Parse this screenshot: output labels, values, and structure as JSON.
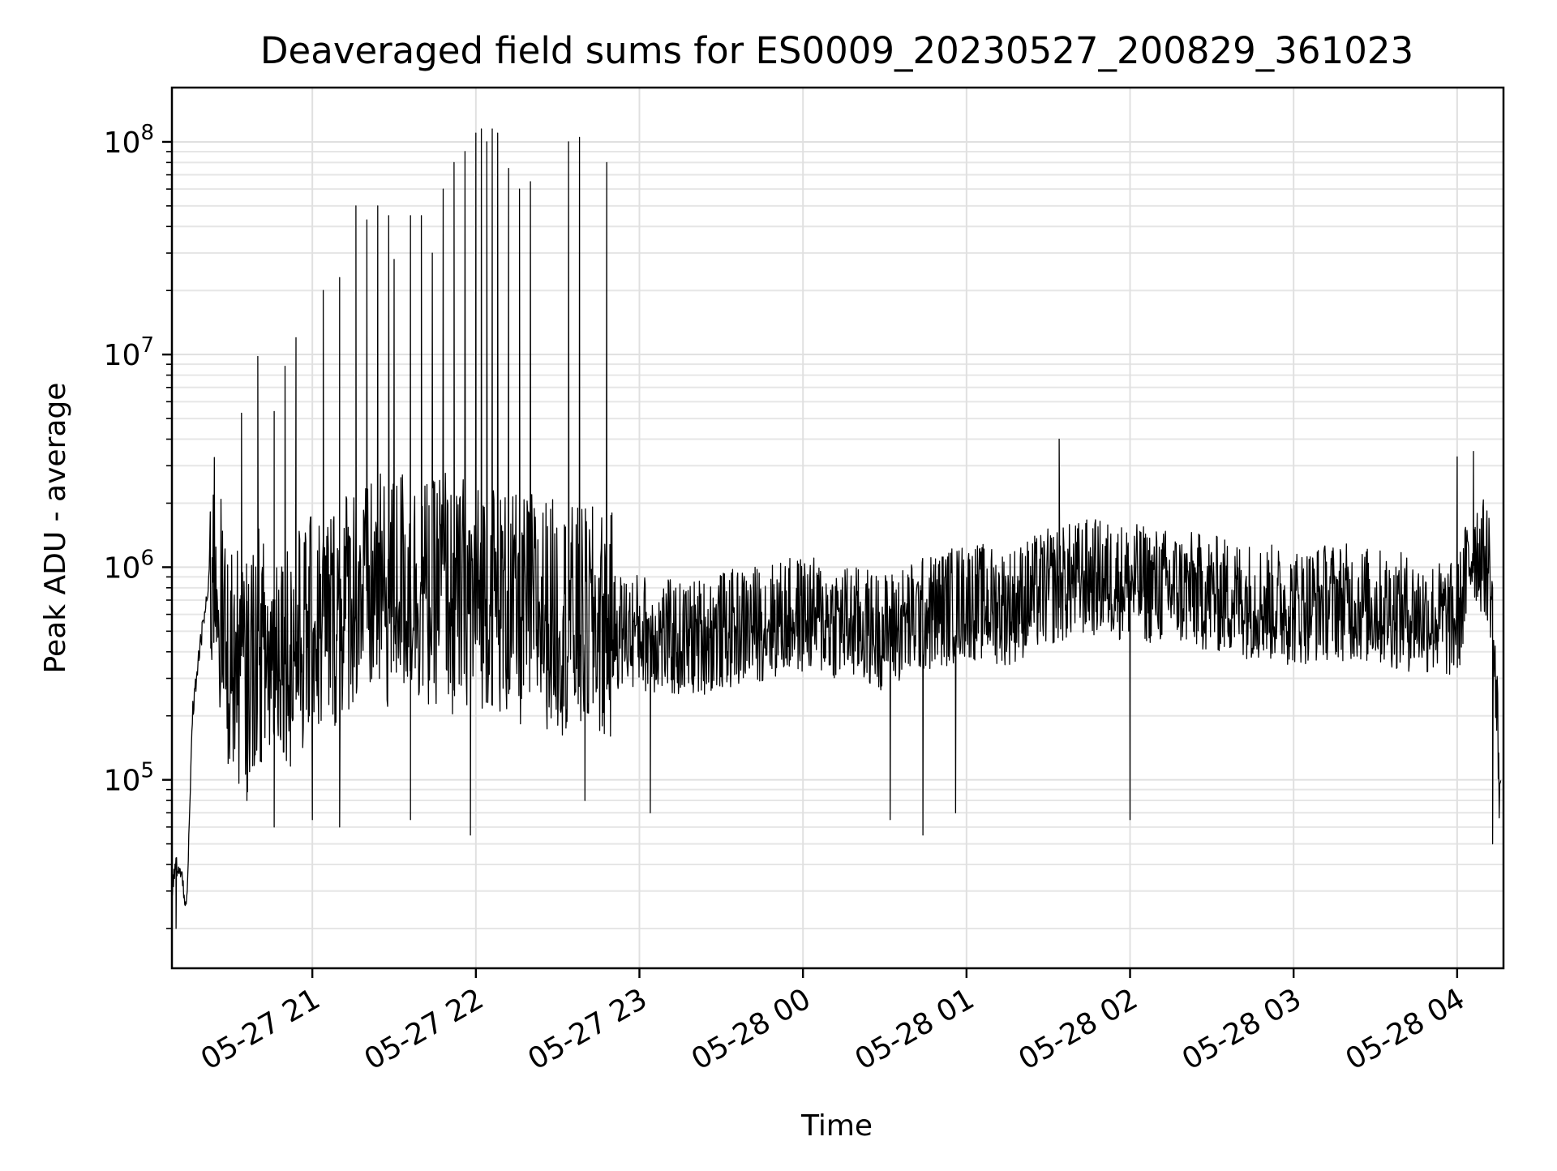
{
  "chart_data": {
    "type": "line",
    "title": "Deaveraged field sums for ES0009_20230527_200829_361023",
    "xlabel": "Time",
    "ylabel": "Peak ADU - average",
    "yscale": "log",
    "ylim": [
      13000,
      180000000
    ],
    "xlim": [
      "2023-05-27 20:08:29",
      "2023-05-28 04:17:00"
    ],
    "grid": true,
    "y_ticks": [
      {
        "value": 100000,
        "base": "10",
        "exp": "5"
      },
      {
        "value": 1000000,
        "base": "10",
        "exp": "6"
      },
      {
        "value": 10000000,
        "base": "10",
        "exp": "7"
      },
      {
        "value": 100000000,
        "base": "10",
        "exp": "8"
      }
    ],
    "x_ticks": [
      {
        "time": "2023-05-27 21:00",
        "label": "05-27 21"
      },
      {
        "time": "2023-05-27 22:00",
        "label": "05-27 22"
      },
      {
        "time": "2023-05-27 23:00",
        "label": "05-27 23"
      },
      {
        "time": "2023-05-28 00:00",
        "label": "05-28 00"
      },
      {
        "time": "2023-05-28 01:00",
        "label": "05-28 01"
      },
      {
        "time": "2023-05-28 02:00",
        "label": "05-28 02"
      },
      {
        "time": "2023-05-28 03:00",
        "label": "05-28 03"
      },
      {
        "time": "2023-05-28 04:00",
        "label": "05-28 04"
      }
    ],
    "line_color": "#000000",
    "series": [
      {
        "x": [
          "2023-05-27 20:08:29",
          "2023-05-27 20:10",
          "2023-05-27 20:12",
          "2023-05-27 20:14",
          "2023-05-27 20:16",
          "2023-05-27 20:18",
          "2023-05-27 20:20",
          "2023-05-27 20:24",
          "2023-05-27 20:28",
          "2023-05-27 20:32",
          "2023-05-27 20:36",
          "2023-05-27 20:40",
          "2023-05-27 20:44",
          "2023-05-27 20:48",
          "2023-05-27 20:52",
          "2023-05-27 20:56",
          "2023-05-27 21:00",
          "2023-05-27 21:04",
          "2023-05-27 21:08",
          "2023-05-27 21:12",
          "2023-05-27 21:16",
          "2023-05-27 21:20",
          "2023-05-27 21:24",
          "2023-05-27 21:28",
          "2023-05-27 21:32",
          "2023-05-27 21:36",
          "2023-05-27 21:40",
          "2023-05-27 21:44",
          "2023-05-27 21:48",
          "2023-05-27 21:52",
          "2023-05-27 21:56",
          "2023-05-27 22:00",
          "2023-05-27 22:04",
          "2023-05-27 22:08",
          "2023-05-27 22:12",
          "2023-05-27 22:16",
          "2023-05-27 22:20",
          "2023-05-27 22:28",
          "2023-05-27 22:36",
          "2023-05-27 22:44",
          "2023-05-27 22:52",
          "2023-05-27 23:00",
          "2023-05-27 23:15",
          "2023-05-27 23:30",
          "2023-05-27 23:45",
          "2023-05-28 00:00",
          "2023-05-28 00:15",
          "2023-05-28 00:30",
          "2023-05-28 00:45",
          "2023-05-28 01:00",
          "2023-05-28 01:15",
          "2023-05-28 01:30",
          "2023-05-28 01:45",
          "2023-05-28 02:00",
          "2023-05-28 02:15",
          "2023-05-28 02:30",
          "2023-05-28 02:45",
          "2023-05-28 03:00",
          "2023-05-28 03:15",
          "2023-05-28 03:30",
          "2023-05-28 03:45",
          "2023-05-28 04:00",
          "2023-05-28 04:06",
          "2023-05-28 04:12",
          "2023-05-28 04:16"
        ],
        "y": [
          30000,
          40000,
          35000,
          25000,
          200000,
          350000,
          550000,
          1200000,
          400000,
          350000,
          300000,
          450000,
          350000,
          500000,
          400000,
          450000,
          500000,
          550000,
          600000,
          700000,
          800000,
          700000,
          800000,
          700000,
          900000,
          800000,
          800000,
          700000,
          1000000,
          600000,
          800000,
          700000,
          800000,
          700000,
          650000,
          600000,
          650000,
          600000,
          550000,
          550000,
          500000,
          500000,
          450000,
          500000,
          550000,
          600000,
          550000,
          500000,
          600000,
          700000,
          650000,
          800000,
          900000,
          850000,
          800000,
          750000,
          700000,
          650000,
          700000,
          650000,
          600000,
          550000,
          1300000,
          1000000,
          80000
        ],
        "spikes": [
          [
            "2023-05-27 20:34",
            5300000
          ],
          [
            "2023-05-27 20:40",
            9800000
          ],
          [
            "2023-05-27 20:46",
            5400000
          ],
          [
            "2023-05-27 20:50",
            8800000
          ],
          [
            "2023-05-27 20:54",
            12000000
          ],
          [
            "2023-05-27 21:04",
            20000000
          ],
          [
            "2023-05-27 21:10",
            23000000
          ],
          [
            "2023-05-27 21:16",
            50000000
          ],
          [
            "2023-05-27 21:20",
            43000000
          ],
          [
            "2023-05-27 21:24",
            50000000
          ],
          [
            "2023-05-27 21:28",
            45000000
          ],
          [
            "2023-05-27 21:30",
            28000000
          ],
          [
            "2023-05-27 21:36",
            45000000
          ],
          [
            "2023-05-27 21:40",
            45000000
          ],
          [
            "2023-05-27 21:44",
            30000000
          ],
          [
            "2023-05-27 21:48",
            60000000
          ],
          [
            "2023-05-27 21:52",
            80000000
          ],
          [
            "2023-05-27 21:56",
            90000000
          ],
          [
            "2023-05-27 22:00",
            110000000
          ],
          [
            "2023-05-27 22:02",
            115000000
          ],
          [
            "2023-05-27 22:04",
            100000000
          ],
          [
            "2023-05-27 22:06",
            115000000
          ],
          [
            "2023-05-27 22:08",
            110000000
          ],
          [
            "2023-05-27 22:12",
            75000000
          ],
          [
            "2023-05-27 22:16",
            60000000
          ],
          [
            "2023-05-27 22:20",
            65000000
          ],
          [
            "2023-05-27 22:34",
            100000000
          ],
          [
            "2023-05-27 22:38",
            105000000
          ],
          [
            "2023-05-27 22:48",
            80000000
          ],
          [
            "2023-05-28 01:34",
            4000000
          ],
          [
            "2023-05-28 04:00",
            3300000
          ],
          [
            "2023-05-28 04:06",
            3500000
          ]
        ],
        "dips": [
          [
            "2023-05-27 20:10",
            20000
          ],
          [
            "2023-05-27 20:36",
            80000
          ],
          [
            "2023-05-27 20:46",
            60000
          ],
          [
            "2023-05-27 21:00",
            65000
          ],
          [
            "2023-05-27 21:10",
            60000
          ],
          [
            "2023-05-27 21:36",
            65000
          ],
          [
            "2023-05-27 21:58",
            55000
          ],
          [
            "2023-05-27 22:40",
            80000
          ],
          [
            "2023-05-27 23:04",
            70000
          ],
          [
            "2023-05-28 00:32",
            65000
          ],
          [
            "2023-05-28 00:44",
            55000
          ],
          [
            "2023-05-28 00:56",
            70000
          ],
          [
            "2023-05-28 02:00",
            65000
          ],
          [
            "2023-05-28 04:13",
            50000
          ]
        ]
      }
    ]
  }
}
